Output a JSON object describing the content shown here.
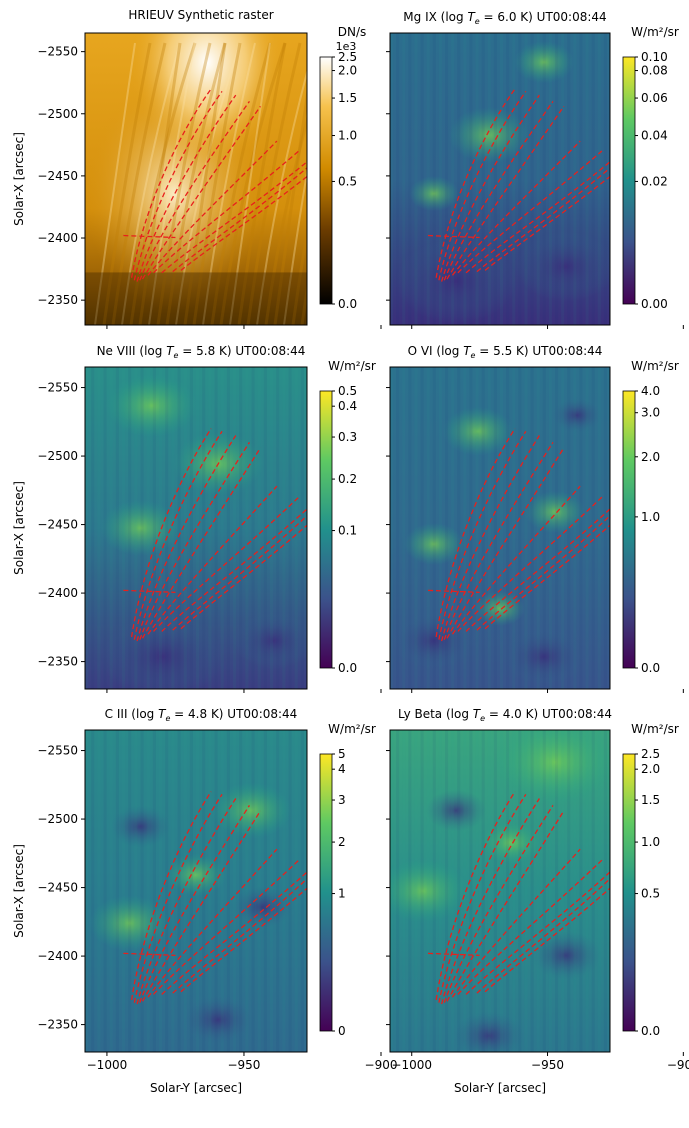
{
  "figure": {
    "xlabel": "Solar-Y [arcsec]",
    "ylabel": "Solar-X [arcsec]",
    "xticks": [
      -1000,
      -950,
      -900
    ],
    "yticks": [
      -2550,
      -2500,
      -2450,
      -2400,
      -2350
    ],
    "xlim": [
      -1008,
      -927
    ],
    "ylim": [
      -2565,
      -2330
    ],
    "loops_color": "#e8201c"
  },
  "panels": [
    {
      "id": "hrieuv",
      "title": "HRIEUV Synthetic raster",
      "unit": "DN/s",
      "cbar_exponent": "1e3",
      "cbar_ticks": [
        "2.5",
        "2.0",
        "1.5",
        "1.0",
        "0.5",
        "0.0"
      ],
      "cmap": "hot-gold",
      "has_ylabel": true,
      "has_xlabel": false
    },
    {
      "id": "mg9",
      "title": "Mg IX (log",
      "temp": "= 6.0 K) UT00:08:44",
      "unit": "W/m²/sr",
      "cbar_ticks": [
        "0.10",
        "0.08",
        "0.06",
        "0.04",
        "0.02",
        "0.00"
      ],
      "cmap": "viridis",
      "has_ylabel": false,
      "has_xlabel": false
    },
    {
      "id": "ne8",
      "title": "Ne VIII (log",
      "temp": "= 5.8 K) UT00:08:44",
      "unit": "W/m²/sr",
      "cbar_ticks": [
        "0.5",
        "0.4",
        "0.3",
        "0.2",
        "0.1",
        "0.0"
      ],
      "cmap": "viridis",
      "has_ylabel": true,
      "has_xlabel": false
    },
    {
      "id": "o6",
      "title": "O VI (log",
      "temp": "= 5.5 K) UT00:08:44",
      "unit": "W/m²/sr",
      "cbar_ticks": [
        "4.0",
        "3.0",
        "2.0",
        "1.0",
        "0.0"
      ],
      "cmap": "viridis",
      "has_ylabel": false,
      "has_xlabel": false
    },
    {
      "id": "c3",
      "title": "C III (log",
      "temp": "= 4.8 K) UT00:08:44",
      "unit": "W/m²/sr",
      "cbar_ticks": [
        "5",
        "4",
        "3",
        "2",
        "1",
        "0"
      ],
      "cmap": "viridis",
      "has_ylabel": true,
      "has_xlabel": true
    },
    {
      "id": "lyb",
      "title": "Ly Beta (log",
      "temp": "= 4.0 K) UT00:08:44",
      "unit": "W/m²/sr",
      "cbar_ticks": [
        "2.5",
        "2.0",
        "1.5",
        "1.0",
        "0.5",
        "0.0"
      ],
      "cmap": "viridis",
      "has_ylabel": false,
      "has_xlabel": true
    }
  ]
}
